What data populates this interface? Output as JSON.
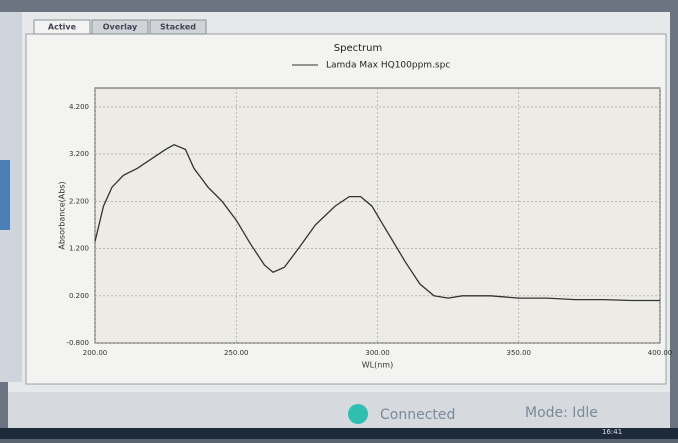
{
  "tabs": [
    "Active",
    "Overlay",
    "Stacked"
  ],
  "chart_data": {
    "type": "line",
    "title": "Spectrum",
    "x_label": "WL(nm)",
    "y_label": "Absorbance(Abs)",
    "x": [
      200,
      203,
      206,
      210,
      215,
      220,
      225,
      228,
      232,
      235,
      240,
      245,
      250,
      255,
      260,
      263,
      267,
      272,
      278,
      285,
      290,
      294,
      298,
      303,
      310,
      315,
      320,
      325,
      330,
      340,
      350,
      360,
      370,
      380,
      390,
      400
    ],
    "series": [
      {
        "name": "Lamda Max HQ100ppm.spc",
        "color": "#333333",
        "values": [
          1.35,
          2.1,
          2.5,
          2.75,
          2.9,
          3.1,
          3.3,
          3.4,
          3.3,
          2.9,
          2.5,
          2.2,
          1.8,
          1.3,
          0.85,
          0.7,
          0.8,
          1.2,
          1.7,
          2.1,
          2.3,
          2.3,
          2.1,
          1.6,
          0.9,
          0.45,
          0.2,
          0.15,
          0.2,
          0.2,
          0.15,
          0.15,
          0.12,
          0.12,
          0.1,
          0.1
        ]
      }
    ],
    "xlim": [
      200,
      400
    ],
    "ylim": [
      -0.8,
      4.6
    ],
    "xticks": [
      {
        "value": 200,
        "label": "200.00"
      },
      {
        "value": 250,
        "label": "250.00"
      },
      {
        "value": 300,
        "label": "300.00"
      },
      {
        "value": 350,
        "label": "350.00"
      },
      {
        "value": 400,
        "label": "400.00"
      }
    ],
    "yticks": [
      {
        "value": -0.8,
        "label": "-0.800"
      },
      {
        "value": 0.2,
        "label": "0.200"
      },
      {
        "value": 1.2,
        "label": "1.200"
      },
      {
        "value": 2.2,
        "label": "2.200"
      },
      {
        "value": 3.2,
        "label": "3.200"
      },
      {
        "value": 4.2,
        "label": "4.200"
      }
    ],
    "grid": true
  },
  "status": {
    "connection": "Connected",
    "mode": "Mode: Idle",
    "clock": "16:41"
  }
}
